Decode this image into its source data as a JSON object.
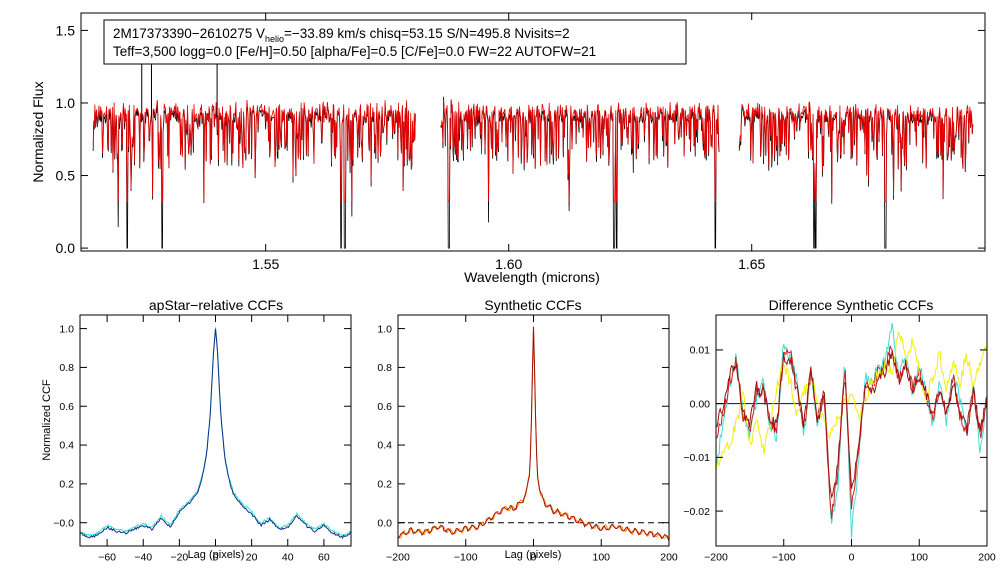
{
  "figure": {
    "colors": {
      "observed": "#000000",
      "model": "#e80000",
      "ccf_cyan": "#40e0d0",
      "ccf_blue": "#10308a",
      "ccf_red": "#d02020",
      "ccf_yellow": "#f0f000",
      "ccf_orange": "#ff8c00",
      "ccf_darkred": "#a01010",
      "zero_line": "#0000aa"
    }
  },
  "chart_data": [
    {
      "type": "line",
      "id": "spectrum",
      "title": "",
      "xlabel": "Wavelength (microns)",
      "ylabel": "Normalized Flux",
      "xlim": [
        1.512,
        1.698
      ],
      "ylim": [
        -0.02,
        1.62
      ],
      "x_ticks": [
        1.55,
        1.6,
        1.65
      ],
      "x_tick_labels": [
        "1.55",
        "1.60",
        "1.65"
      ],
      "y_ticks": [
        0.0,
        0.5,
        1.0,
        1.5
      ],
      "y_tick_labels": [
        "0.0",
        "0.5",
        "1.0",
        "1.5"
      ],
      "chip_ranges": [
        [
          1.5145,
          1.5808
        ],
        [
          1.586,
          1.6433
        ],
        [
          1.6474,
          1.6955
        ]
      ],
      "series": [
        {
          "name": "observed",
          "color": "#000000"
        },
        {
          "name": "best-fit model",
          "color": "#e80000"
        }
      ],
      "annotation": {
        "line1_pre": "2M17373390−2610275  V",
        "line1_sub": "helio",
        "line1_post": "=−33.89 km/s  chisq=53.15  S/N=495.8  Nvisits=2",
        "line2": "Teff=3,500 logg=0.0 [Fe/H]=0.50 [alpha/Fe]=0.5 [C/Fe]=0.0 FW=22 AUTOFW=21",
        "object": "2M17373390-2610275",
        "vhelio_kms": -33.89,
        "chisq": 53.15,
        "snr": 495.8,
        "nvisits": 2,
        "teff": 3500,
        "logg": 0.0,
        "feh": 0.5,
        "alpha_fe": 0.5,
        "c_fe": 0.0,
        "fw": 22,
        "autofw": 21
      }
    },
    {
      "type": "line",
      "id": "apstar_ccf",
      "title": "apStar−relative CCFs",
      "xlabel": "Lag (pixels)",
      "ylabel": "Normalized CCF",
      "xlim": [
        -75,
        75
      ],
      "ylim": [
        -0.12,
        1.07
      ],
      "x_ticks": [
        -60,
        -40,
        -20,
        0,
        20,
        40,
        60
      ],
      "x_tick_labels": [
        "−60",
        "−40",
        "−20",
        "0",
        "20",
        "40",
        "60"
      ],
      "y_ticks": [
        0.0,
        0.2,
        0.4,
        0.6,
        0.8,
        1.0
      ],
      "y_tick_labels": [
        "−0.0",
        "0.2",
        "0.4",
        "0.6",
        "0.8",
        "1.0"
      ],
      "series": [
        {
          "name": "visit 1",
          "color": "#40e0d0"
        },
        {
          "name": "visit 2",
          "color": "#10308a"
        }
      ],
      "x": [
        -75,
        -70,
        -65,
        -60,
        -55,
        -50,
        -45,
        -40,
        -35,
        -30,
        -25,
        -20,
        -15,
        -10,
        -7,
        -5,
        -3,
        -2,
        -1,
        0,
        1,
        2,
        3,
        5,
        7,
        10,
        15,
        20,
        25,
        30,
        35,
        40,
        45,
        50,
        55,
        60,
        65,
        70,
        75
      ],
      "values": [
        -0.05,
        -0.07,
        -0.06,
        -0.02,
        -0.04,
        -0.05,
        -0.03,
        -0.01,
        -0.03,
        0.03,
        -0.02,
        0.06,
        0.1,
        0.16,
        0.25,
        0.35,
        0.55,
        0.72,
        0.9,
        1.0,
        0.9,
        0.72,
        0.55,
        0.35,
        0.24,
        0.15,
        0.09,
        0.05,
        -0.01,
        0.02,
        -0.03,
        -0.02,
        0.04,
        -0.01,
        -0.04,
        -0.01,
        -0.05,
        -0.07,
        -0.05
      ]
    },
    {
      "type": "line",
      "id": "synthetic_ccf",
      "title": "Synthetic CCFs",
      "xlabel": "Lag (pixels)",
      "ylabel": "",
      "xlim": [
        -200,
        200
      ],
      "ylim": [
        -0.12,
        1.07
      ],
      "x_ticks": [
        -200,
        -100,
        0,
        100,
        200
      ],
      "x_tick_labels": [
        "−200",
        "−100",
        "0",
        "100",
        "200"
      ],
      "y_ticks": [
        0.0,
        0.2,
        0.4,
        0.6,
        0.8,
        1.0
      ],
      "y_tick_labels": [
        "0.0",
        "0.2",
        "0.4",
        "0.6",
        "0.8",
        "1.0"
      ],
      "baseline": 0.0,
      "series": [
        {
          "name": "orange",
          "color": "#ff8c00"
        },
        {
          "name": "dark red",
          "color": "#a01010"
        }
      ],
      "x": [
        -200,
        -180,
        -160,
        -140,
        -120,
        -100,
        -80,
        -60,
        -40,
        -30,
        -20,
        -15,
        -10,
        -6,
        -4,
        -2,
        -1,
        0,
        1,
        2,
        4,
        6,
        10,
        15,
        20,
        30,
        40,
        60,
        80,
        100,
        120,
        140,
        160,
        180,
        200
      ],
      "values": [
        -0.07,
        -0.04,
        -0.05,
        -0.02,
        -0.05,
        -0.03,
        -0.02,
        0.03,
        0.08,
        0.07,
        0.1,
        0.12,
        0.16,
        0.25,
        0.4,
        0.7,
        0.88,
        1.0,
        0.88,
        0.7,
        0.4,
        0.25,
        0.15,
        0.11,
        0.09,
        0.06,
        0.05,
        0.02,
        -0.01,
        -0.03,
        -0.02,
        -0.04,
        -0.05,
        -0.06,
        -0.08
      ]
    },
    {
      "type": "line",
      "id": "difference_ccf",
      "title": "Difference Synthetic CCFs",
      "xlabel": "",
      "ylabel": "",
      "xlim": [
        -200,
        200
      ],
      "ylim": [
        -0.0265,
        0.0165
      ],
      "x_ticks": [
        -200,
        -100,
        0,
        100,
        200
      ],
      "x_tick_labels": [
        "−200",
        "−100",
        "0",
        "100",
        "200"
      ],
      "y_ticks": [
        -0.02,
        -0.01,
        0.0,
        0.01
      ],
      "y_tick_labels": [
        "−0.02",
        "−0.01",
        "0.00",
        "0.01"
      ],
      "baseline": 0.0,
      "x": [
        -200,
        -190,
        -180,
        -170,
        -160,
        -150,
        -140,
        -130,
        -120,
        -110,
        -100,
        -90,
        -80,
        -70,
        -60,
        -50,
        -40,
        -30,
        -20,
        -10,
        0,
        10,
        20,
        30,
        40,
        50,
        60,
        70,
        80,
        90,
        100,
        110,
        120,
        130,
        140,
        150,
        160,
        170,
        180,
        190,
        200
      ],
      "series": [
        {
          "name": "cyan",
          "color": "#40e0d0",
          "values": [
            -0.012,
            -0.004,
            0.003,
            0.009,
            -0.002,
            -0.006,
            0.001,
            0.004,
            -0.005,
            -0.006,
            0.012,
            0.008,
            0.004,
            -0.006,
            0.006,
            -0.004,
            0.002,
            -0.022,
            -0.015,
            0.008,
            -0.024,
            -0.012,
            0.005,
            0.004,
            0.007,
            0.008,
            0.014,
            0.005,
            0.009,
            0.002,
            0.007,
            0.002,
            -0.004,
            0.004,
            -0.003,
            0.006,
            0.001,
            -0.005,
            0.004,
            -0.009,
            0.002
          ]
        },
        {
          "name": "red",
          "color": "#d02020",
          "values": [
            -0.006,
            -0.002,
            0.004,
            0.008,
            -0.003,
            -0.005,
            0.002,
            0.003,
            -0.004,
            -0.005,
            0.01,
            0.009,
            0.003,
            -0.005,
            0.007,
            -0.003,
            0.001,
            -0.021,
            -0.013,
            0.007,
            -0.019,
            -0.01,
            0.004,
            0.003,
            0.006,
            0.007,
            0.011,
            0.004,
            0.008,
            0.003,
            0.006,
            0.002,
            -0.003,
            0.003,
            -0.002,
            0.005,
            -0.002,
            -0.006,
            0.003,
            -0.007,
            0.001
          ]
        },
        {
          "name": "yellow",
          "color": "#f0f000",
          "values": [
            -0.012,
            -0.01,
            -0.007,
            -0.004,
            0.002,
            -0.008,
            -0.003,
            -0.009,
            -0.004,
            0.003,
            0.007,
            0.004,
            -0.002,
            0.002,
            0.005,
            0.001,
            -0.004,
            -0.006,
            -0.003,
            0.001,
            0.002,
            -0.003,
            0.001,
            0.004,
            0.006,
            0.007,
            0.006,
            0.014,
            0.008,
            0.012,
            0.006,
            0.001,
            0.005,
            0.009,
            0.003,
            0.008,
            0.004,
            0.009,
            0.003,
            0.007,
            0.012
          ]
        },
        {
          "name": "dark red",
          "color": "#a01010",
          "values": [
            -0.004,
            -0.001,
            0.005,
            0.008,
            -0.002,
            -0.004,
            0.003,
            0.002,
            -0.003,
            -0.004,
            0.009,
            0.008,
            0.002,
            -0.004,
            0.006,
            -0.003,
            0.002,
            -0.019,
            -0.011,
            0.006,
            -0.016,
            -0.009,
            0.003,
            0.002,
            0.005,
            0.006,
            0.01,
            0.004,
            0.007,
            0.002,
            0.005,
            0.002,
            -0.002,
            0.002,
            -0.002,
            0.004,
            -0.001,
            -0.005,
            0.002,
            -0.005,
            0.001
          ]
        }
      ]
    }
  ]
}
